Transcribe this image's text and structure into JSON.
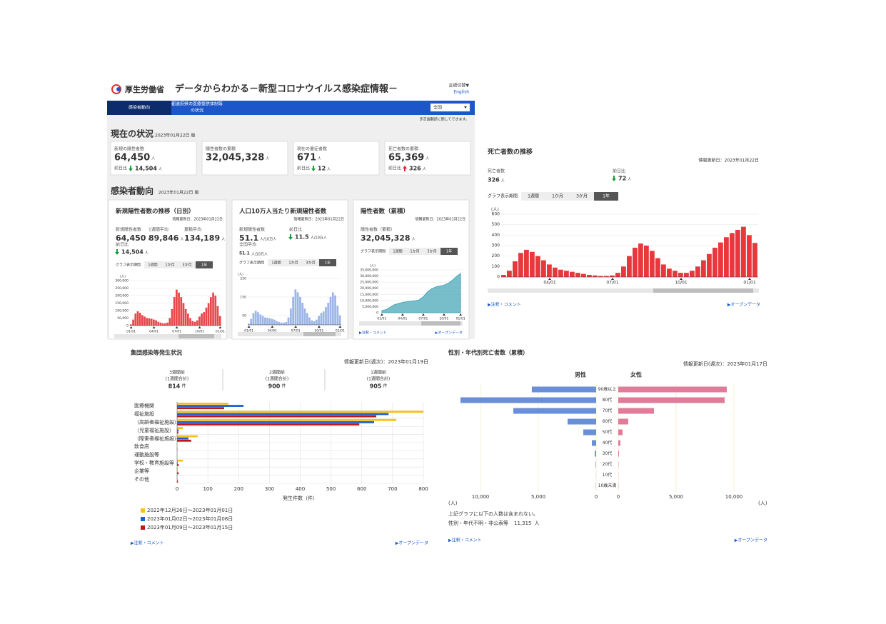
{
  "header": {
    "logo": "厚生労働省",
    "title": "データからわかる－新型コロナウイルス感染症情報－",
    "language": "言語切替▼",
    "english": "English"
  },
  "nav": {
    "tabs": [
      "感染者動向",
      "都道府県の医療提供体制等",
      "の状況"
    ],
    "region": "全国",
    "note": "多言語翻訳に関してできます。"
  },
  "current": {
    "heading": "現在の状況",
    "date": "2023年01月22日 版",
    "cards": [
      {
        "label": "新規の陽性者数",
        "value": "64,450",
        "unit": "人",
        "change": {
          "label": "前日比",
          "value": "14,504",
          "unit": "人",
          "direction": "down"
        }
      },
      {
        "label": "陽性者数の累積",
        "value": "32,045,328",
        "unit": "人"
      },
      {
        "label": "現在の重症者数",
        "value": "671",
        "unit": "人",
        "change": {
          "label": "前日比",
          "value": "12",
          "unit": "人",
          "direction": "down"
        }
      },
      {
        "label": "死亡者数の累積",
        "value": "65,369",
        "unit": "人",
        "change": {
          "label": "前日比",
          "value": "326",
          "unit": "人",
          "direction": "up"
        }
      }
    ]
  },
  "trend": {
    "heading": "感染者動向",
    "date": "2023年01月22日 版",
    "updated": "情報更新日：2023年01月22日",
    "new_cases": {
      "kpis": [
        {
          "label": "新規陽性者数",
          "value": "64,450",
          "unit": "人"
        },
        {
          "label": "1週間平均",
          "value": "89,846",
          "unit": "人"
        },
        {
          "label": "累積平均",
          "value": "134,189",
          "unit": "人"
        }
      ],
      "change": {
        "label": "前日比",
        "value": "14,504",
        "unit": "人",
        "direction": "down"
      }
    },
    "per_100k": {
      "kpis": [
        {
          "label": "新規陽性者数",
          "value": "51.1",
          "unit": "人/10万人"
        }
      ],
      "change": {
        "label": "前日比",
        "value": "11.5",
        "unit": "人/10万人",
        "direction": "down"
      },
      "average": {
        "label": "全国平均",
        "value": "51.1",
        "unit": "人/10万人"
      }
    },
    "cumulative": {
      "kpis": [
        {
          "label": "陽性者数（累積）",
          "value": "32,045,328",
          "unit": "人"
        }
      ]
    }
  },
  "common": {
    "period_label": "グラフ表示期間",
    "periods": [
      "1週間",
      "1か月",
      "3か月",
      "1年"
    ],
    "comment_link": "▶注釈・コメント",
    "data_link": "▶オープンデータ"
  },
  "deaths": {
    "updated": "情報更新日：2023年01月22日",
    "kpi": {
      "label": "死亡者数",
      "value": "326",
      "unit": "人"
    },
    "change": {
      "label": "前日比",
      "value": "72",
      "unit": "人",
      "direction": "down"
    }
  },
  "clusters": {
    "updated": "情報更新日(週次)：2023年01月19日",
    "stats": [
      {
        "label": "3週間前",
        "sub": "(1週間合計)",
        "value": "814",
        "unit": "件"
      },
      {
        "label": "2週間前",
        "sub": "(1週間合計)",
        "value": "900",
        "unit": "件"
      },
      {
        "label": "1週間前",
        "sub": "(1週間合計)",
        "value": "905",
        "unit": "件"
      }
    ]
  },
  "sex_age": {
    "updated": "情報更新日(週次)：2023年01月17日",
    "note": "上記グラフに以下の人数は含まれない。",
    "excluded": {
      "label": "性別・年代不明・非公表等",
      "value": "11,315",
      "unit": "人"
    }
  },
  "chart_data": [
    {
      "type": "bar",
      "title": "新規陽性者数の推移（日別）",
      "ylabel": "(人)",
      "color": "#e8474b",
      "categories": [
        "01/01",
        null,
        null,
        null,
        null,
        null,
        null,
        null,
        null,
        null,
        "04/01",
        null,
        null,
        null,
        null,
        null,
        null,
        null,
        null,
        null,
        "07/01",
        null,
        null,
        null,
        null,
        null,
        null,
        null,
        null,
        null,
        "10/01",
        null,
        null,
        null,
        null,
        null,
        null,
        null,
        null,
        "01/01"
      ],
      "values": [
        8000,
        40000,
        80000,
        95000,
        85000,
        70000,
        60000,
        50000,
        48000,
        45000,
        40000,
        35000,
        25000,
        20000,
        15000,
        15000,
        20000,
        50000,
        110000,
        190000,
        240000,
        220000,
        190000,
        150000,
        110000,
        80000,
        50000,
        30000,
        25000,
        35000,
        60000,
        80000,
        90000,
        120000,
        150000,
        190000,
        220000,
        200000,
        130000,
        64450
      ],
      "ylim": [
        0,
        300000
      ],
      "yticks": [
        0,
        {
          "value": 50000,
          "label": "50,000"
        },
        {
          "value": 100000,
          "label": "100,000"
        },
        {
          "value": 150000,
          "label": "150,000"
        },
        {
          "value": 200000,
          "label": "200,000"
        },
        {
          "value": 250000,
          "label": "250,000"
        },
        {
          "value": 300000,
          "label": "300,000"
        }
      ]
    },
    {
      "type": "bar",
      "title": "人口10万人当たり新規陽性者数",
      "ylabel": "(人)",
      "color": "#9db6e6",
      "categories": [
        "01/01",
        null,
        null,
        null,
        null,
        null,
        null,
        null,
        null,
        null,
        "04/01",
        null,
        null,
        null,
        null,
        null,
        null,
        null,
        null,
        null,
        "07/01",
        null,
        null,
        null,
        null,
        null,
        null,
        null,
        null,
        null,
        "10/01",
        null,
        null,
        null,
        null,
        null,
        null,
        null,
        null,
        "01/01"
      ],
      "values": [
        6,
        32,
        64,
        76,
        68,
        56,
        48,
        40,
        38,
        36,
        32,
        28,
        20,
        16,
        12,
        12,
        16,
        40,
        88,
        151,
        191,
        175,
        151,
        119,
        88,
        64,
        40,
        24,
        20,
        28,
        48,
        64,
        72,
        96,
        119,
        151,
        175,
        159,
        104,
        51.1
      ],
      "ylim": [
        0,
        250
      ],
      "yticks": [
        50,
        150,
        250
      ]
    },
    {
      "type": "area",
      "title": "陽性者数（累積）",
      "ylabel": "(人)",
      "color": "#4aa8b8",
      "categories": [
        "01/01",
        null,
        null,
        null,
        null,
        "04/01",
        null,
        null,
        null,
        null,
        "07/01",
        null,
        null,
        null,
        null,
        "10/01",
        null,
        null,
        null,
        "01/01"
      ],
      "values": [
        1750000,
        2500000,
        4500000,
        6500000,
        7500000,
        8500000,
        9000000,
        9300000,
        9700000,
        10500000,
        13000000,
        17000000,
        19500000,
        21000000,
        21800000,
        22500000,
        24000000,
        26500000,
        29500000,
        32045328
      ],
      "ylim": [
        0,
        35000000
      ],
      "yticks": [
        0,
        {
          "value": 5000000,
          "label": "5,000,000"
        },
        {
          "value": 10000000,
          "label": "10,000,000"
        },
        {
          "value": 15000000,
          "label": "15,000,000"
        },
        {
          "value": 20000000,
          "label": "20,000,000"
        },
        {
          "value": 25000000,
          "label": "25,000,000"
        },
        {
          "value": 30000000,
          "label": "30,000,000"
        },
        {
          "value": 35000000,
          "label": "35,000,000"
        }
      ]
    },
    {
      "type": "bar",
      "title": "死亡者数の推移",
      "ylabel": "(人)",
      "color": "#e8383c",
      "categories": [
        null,
        null,
        null,
        null,
        null,
        null,
        null,
        null,
        "04/01",
        null,
        null,
        null,
        null,
        null,
        null,
        null,
        null,
        null,
        null,
        "07/01",
        null,
        null,
        null,
        null,
        null,
        null,
        null,
        null,
        null,
        null,
        null,
        "10/01",
        null,
        null,
        null,
        null,
        null,
        null,
        null,
        null,
        null,
        null,
        null,
        "01/01",
        null
      ],
      "values": [
        20,
        60,
        150,
        230,
        260,
        240,
        200,
        160,
        120,
        90,
        70,
        60,
        50,
        40,
        30,
        20,
        15,
        10,
        10,
        15,
        40,
        100,
        200,
        280,
        320,
        300,
        250,
        180,
        120,
        80,
        60,
        40,
        40,
        60,
        100,
        160,
        220,
        280,
        330,
        380,
        420,
        450,
        480,
        400,
        326
      ],
      "ylim": [
        0,
        600
      ],
      "yticks": [
        0,
        100,
        200,
        300,
        400,
        500,
        600
      ]
    },
    {
      "type": "hbar",
      "title": "集団感染等発生状況",
      "xlabel": "発生件数（件）",
      "categories": [
        "医療機関",
        "福祉施設",
        "（高齢者福祉施設）",
        "（児童福祉施設）",
        "（障害者福祉施設）",
        "飲食店",
        "運動施設等",
        "学校・教育施設等",
        "企業等",
        "その他"
      ],
      "series": [
        {
          "name": "2022年12月26日～2023年01月01日",
          "color": "#f5c21b",
          "values": [
            167,
            800,
            712,
            19,
            67,
            1,
            0,
            19,
            2,
            1
          ]
        },
        {
          "name": "2023年01月02日～2023年01月08日",
          "color": "#1f5fd1",
          "values": [
            216,
            687,
            640,
            5,
            37,
            0,
            0,
            2,
            1,
            1
          ]
        },
        {
          "name": "2023年01月09日～2023年01月15日",
          "color": "#c0161b",
          "values": [
            153,
            647,
            592,
            4,
            46,
            1,
            0,
            5,
            5,
            3
          ]
        }
      ],
      "xlim": [
        0,
        800
      ],
      "xticks": [
        0,
        100,
        200,
        300,
        400,
        500,
        600,
        700,
        800
      ]
    },
    {
      "type": "butterfly",
      "title": "性別・年代別死亡者数（累積）",
      "unit": "(人)",
      "categories": [
        "90歳以上",
        "80代",
        "70代",
        "60代",
        "50代",
        "40代",
        "30代",
        "20代",
        "10代",
        "10歳未満"
      ],
      "series": [
        {
          "name": "男性",
          "color": "#6a8fd8",
          "values": [
            5560,
            11730,
            7160,
            2470,
            1110,
            370,
            120,
            40,
            10,
            20
          ]
        },
        {
          "name": "女性",
          "color": "#e07c9a",
          "values": [
            9380,
            9200,
            3090,
            860,
            370,
            180,
            60,
            20,
            10,
            20
          ]
        }
      ],
      "xlim": [
        0,
        10000
      ],
      "xticks": [
        0,
        {
          "value": 5000,
          "label": "5,000"
        },
        {
          "value": 10000,
          "label": "10,000"
        }
      ]
    }
  ]
}
